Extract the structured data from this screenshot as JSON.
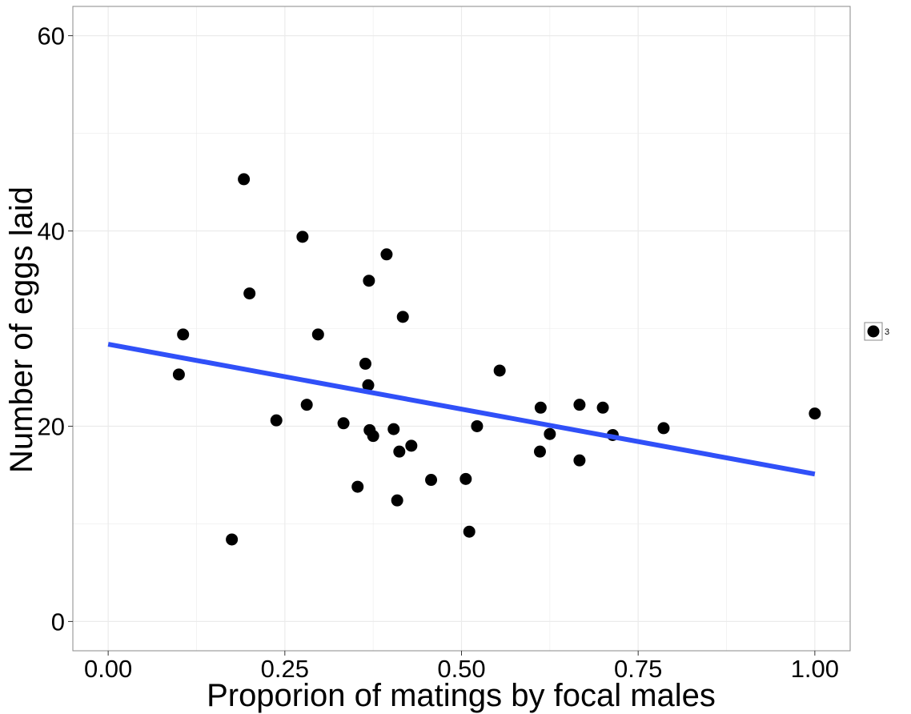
{
  "chart_data": {
    "type": "scatter",
    "title": "",
    "xlabel": "Proporion of matings by focal males",
    "ylabel": "Number of eggs laid",
    "xlim": [
      -0.05,
      1.05
    ],
    "ylim": [
      -3,
      63
    ],
    "x_ticks": [
      0,
      0.25,
      0.5,
      0.75,
      1
    ],
    "x_tick_labels": [
      "0.00",
      "0.25",
      "0.50",
      "0.75",
      "1.00"
    ],
    "y_ticks": [
      0,
      20,
      40,
      60
    ],
    "y_tick_labels": [
      "0",
      "20",
      "40",
      "60"
    ],
    "grid": true,
    "legend": {
      "position": "right",
      "entries": [
        "3"
      ]
    },
    "colors": {
      "points": "#000000",
      "trend_line": "#3050F8",
      "grid": "#EBEBEB",
      "panel_border": "#888888"
    },
    "series": [
      {
        "values": [
          {
            "x": 0.1,
            "y": 25.3
          },
          {
            "x": 0.106,
            "y": 29.4
          },
          {
            "x": 0.175,
            "y": 8.4
          },
          {
            "x": 0.192,
            "y": 45.3
          },
          {
            "x": 0.2,
            "y": 33.6
          },
          {
            "x": 0.238,
            "y": 20.6
          },
          {
            "x": 0.275,
            "y": 39.4
          },
          {
            "x": 0.281,
            "y": 22.2
          },
          {
            "x": 0.297,
            "y": 29.4
          },
          {
            "x": 0.333,
            "y": 20.3
          },
          {
            "x": 0.353,
            "y": 13.8
          },
          {
            "x": 0.364,
            "y": 26.4
          },
          {
            "x": 0.368,
            "y": 24.2
          },
          {
            "x": 0.369,
            "y": 34.9
          },
          {
            "x": 0.37,
            "y": 19.6
          },
          {
            "x": 0.375,
            "y": 19.0
          },
          {
            "x": 0.394,
            "y": 37.6
          },
          {
            "x": 0.404,
            "y": 19.7
          },
          {
            "x": 0.409,
            "y": 12.4
          },
          {
            "x": 0.412,
            "y": 17.4
          },
          {
            "x": 0.417,
            "y": 31.2
          },
          {
            "x": 0.429,
            "y": 18.0
          },
          {
            "x": 0.457,
            "y": 14.5
          },
          {
            "x": 0.506,
            "y": 14.6
          },
          {
            "x": 0.511,
            "y": 9.2
          },
          {
            "x": 0.522,
            "y": 20.0
          },
          {
            "x": 0.554,
            "y": 25.7
          },
          {
            "x": 0.611,
            "y": 17.4
          },
          {
            "x": 0.612,
            "y": 21.9
          },
          {
            "x": 0.625,
            "y": 19.2
          },
          {
            "x": 0.667,
            "y": 16.5
          },
          {
            "x": 0.667,
            "y": 22.2
          },
          {
            "x": 0.7,
            "y": 21.9
          },
          {
            "x": 0.714,
            "y": 19.1
          },
          {
            "x": 0.786,
            "y": 19.8
          },
          {
            "x": 1.0,
            "y": 21.3
          }
        ]
      }
    ],
    "trend_line": {
      "x": [
        0,
        1
      ],
      "y": [
        28.4,
        15.1
      ]
    }
  }
}
